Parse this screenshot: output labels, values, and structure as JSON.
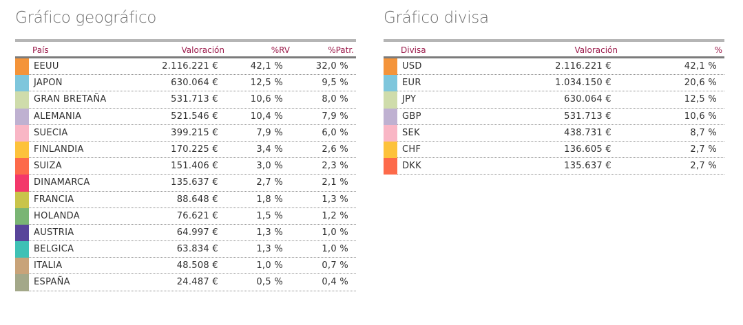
{
  "geografico": {
    "title": "Gráfico geográfico",
    "headers": {
      "name": "País",
      "valoracion": "Valoración",
      "rv": "%RV",
      "patr": "%Patr."
    },
    "rows": [
      {
        "name": "EEUU",
        "valoracion": "2.116.221 €",
        "rv": "42,1 %",
        "patr": "32,0 %",
        "color": "#f4943a"
      },
      {
        "name": "JAPON",
        "valoracion": "630.064 €",
        "rv": "12,5 %",
        "patr": "9,5 %",
        "color": "#7ec6dc"
      },
      {
        "name": "GRAN BRETAÑA",
        "valoracion": "531.713 €",
        "rv": "10,6 %",
        "patr": "8,0 %",
        "color": "#cfdcab"
      },
      {
        "name": "ALEMANIA",
        "valoracion": "521.546 €",
        "rv": "10,4 %",
        "patr": "7,9 %",
        "color": "#bfb1d1"
      },
      {
        "name": "SUECIA",
        "valoracion": "399.215 €",
        "rv": "7,9 %",
        "patr": "6,0 %",
        "color": "#f9b6c5"
      },
      {
        "name": "FINLANDIA",
        "valoracion": "170.225 €",
        "rv": "3,4 %",
        "patr": "2,6 %",
        "color": "#fdc23b"
      },
      {
        "name": "SUIZA",
        "valoracion": "151.406 €",
        "rv": "3,0 %",
        "patr": "2,3 %",
        "color": "#fd6a4a"
      },
      {
        "name": "DINAMARCA",
        "valoracion": "135.637 €",
        "rv": "2,7 %",
        "patr": "2,1 %",
        "color": "#f3386a"
      },
      {
        "name": "FRANCIA",
        "valoracion": "88.648 €",
        "rv": "1,8 %",
        "patr": "1,3 %",
        "color": "#c9c44a"
      },
      {
        "name": "HOLANDA",
        "valoracion": "76.621 €",
        "rv": "1,5 %",
        "patr": "1,2 %",
        "color": "#7ab574"
      },
      {
        "name": "AUSTRIA",
        "valoracion": "64.997 €",
        "rv": "1,3 %",
        "patr": "1,0 %",
        "color": "#58459a"
      },
      {
        "name": "BELGICA",
        "valoracion": "63.834 €",
        "rv": "1,3 %",
        "patr": "1,0 %",
        "color": "#3fc1b5"
      },
      {
        "name": "ITALIA",
        "valoracion": "48.508 €",
        "rv": "1,0 %",
        "patr": "0,7 %",
        "color": "#c8a379"
      },
      {
        "name": "ESPAÑA",
        "valoracion": "24.487 €",
        "rv": "0,5 %",
        "patr": "0,4 %",
        "color": "#a3a889"
      }
    ]
  },
  "divisa": {
    "title": "Gráfico divisa",
    "headers": {
      "name": "Divisa",
      "valoracion": "Valoración",
      "pct": "%"
    },
    "rows": [
      {
        "name": "USD",
        "valoracion": "2.116.221 €",
        "pct": "42,1 %",
        "color": "#f4943a"
      },
      {
        "name": "EUR",
        "valoracion": "1.034.150 €",
        "pct": "20,6 %",
        "color": "#7ec6dc"
      },
      {
        "name": "JPY",
        "valoracion": "630.064 €",
        "pct": "12,5 %",
        "color": "#cfdcab"
      },
      {
        "name": "GBP",
        "valoracion": "531.713 €",
        "pct": "10,6 %",
        "color": "#bfb1d1"
      },
      {
        "name": "SEK",
        "valoracion": "438.731 €",
        "pct": "8,7 %",
        "color": "#f9b6c5"
      },
      {
        "name": "CHF",
        "valoracion": "136.605 €",
        "pct": "2,7 %",
        "color": "#fdc23b"
      },
      {
        "name": "DKK",
        "valoracion": "135.637 €",
        "pct": "2,7 %",
        "color": "#fd6a4a"
      }
    ]
  }
}
